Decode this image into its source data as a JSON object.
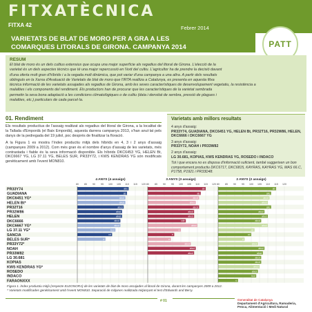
{
  "header": {
    "brand": "FITXATÈCNICA",
    "fitxa_number": "FITXA 42",
    "date": "Febrer 2014",
    "logo_text": "PATT",
    "colors": {
      "primary_green": "#6f9a2c",
      "light_green": "#dce9c3"
    }
  },
  "title": {
    "line1": "VARIETATS DE BLAT DE MORO PER A GRA A LES",
    "line2": "COMARQUES LITORALS DE GIRONA. CAMPANYA 2014"
  },
  "resum": {
    "heading": "RESUM",
    "lines": [
      "El blat de moro és un dels cultius extensius que ocupa una major superfície als regadius del litoral de Girona. L'elecció de la",
      "varietat és un dels aspectes tècnics que té una major repercussió en l'èxit del cultiu. L'agricultor ha de prendre la decisió davant",
      "d'una oferta molt gran d'híbrids i a la vegada molt dinàmica, que pot variar d'una campanya a una altra. A partir dels resultats",
      "obtinguts en la Xarxa d'Avaluació de Varietats de blat de moro que l'IRTA realitza a Catalunya, es presenta en aquesta fitxa",
      "tècnica informació de les varietats assajades als regadius de Girona, amb les seves característiques de desenvolupament vegetatiu, la resistència a",
      "malalties i els components del rendiment. Els productors han de procurar que les característiques de la varietat sembrada",
      "permetin la seva bona adaptació a les condicions climatològiques o de cultiu (data i densitat de sembra, pressió de plagues i",
      "malalties, etc.) particulars de cada parcel·la."
    ]
  },
  "rendiment": {
    "heading": "01. Rendiment",
    "paragraphs": [
      "Els resultats productius de l'assaig realitzat als regadius del litoral de Girona, a la localitat de la Tallada d'Empordà (el Baix Empordà), aquesta darrera campanya 2013, s'han anul·lat pels danys de la pedregada del 19 juliol, poc després de finalitzar la floració.",
      "A la Figura 1 es mostra l'índex productiu mitjà dels híbrids en 4, 3 i 2 anys d'assaig (campanyes 2009 a 2012). Com més gran és el nombre d'anys d'assaig de les varietats, més contrastada i fiable és la seva informació disponible. Els híbrids DKC6453 YG, HELEN Bt, DKC6667 YG, LG 37.11 YG, BELES SUR, PR33Y72, i KWS KENDRAS YG són modificats genèticament amb l'event MON810."
    ]
  },
  "best": {
    "heading": "Varietats amb millors resultats",
    "g4_label": "4 anys d'assaig:",
    "g4_list": "PR33Y74, GUADIANA, DKC6451 YG, HELEN Bt, PR32T16, PR32W86, HELEN, DKC6666 i DKC6667 YG",
    "g3_label": "3 anys d'assaig:",
    "g3_list": "PR33Y72, NOAH i PR33W82",
    "g2_label": "2 anys d'assaig:",
    "g2_list": "LG 30.681, KOPIAS, KWS KENDRAS YG, ROSEDO i INDACO",
    "note": "Tot i que encara no es disposa d'informació suficient, també suggerixen un bon comportament productiu DKC6717, DKC6815, KAYRAS, KAYRAS YG, MAS 66.C, P1758, P1921 i PR33D48."
  },
  "chart_data": {
    "type": "bar",
    "categories": [
      "PR33Y74",
      "GUADIANA",
      "DKC6451 YG*",
      "HELEN Bt*",
      "PR32T16",
      "PR32W86",
      "HELEN",
      "DKC6666",
      "DKC6667 YG*",
      "LG 37.11 YG*",
      "SANCIA",
      "BELES SUR*",
      "PR33Y72*",
      "NOAH",
      "PR33W82",
      "LG 30.681",
      "KOPIAS",
      "KWS KENDRAS YG*",
      "ROSEDO",
      "INDACO",
      "FARAONXXX"
    ],
    "panels": [
      {
        "title": "4 ANYS (4 assaigs)",
        "xlim": [
          80,
          120
        ],
        "ticks": [
          80,
          85,
          90,
          95,
          100,
          105,
          110,
          115,
          120
        ],
        "values": [
          111,
          110,
          109,
          109,
          108,
          107,
          107,
          106,
          106,
          103,
          101,
          97,
          null,
          null,
          null,
          null,
          null,
          null,
          null,
          null,
          null
        ],
        "labels": [
          "abc",
          "ab",
          "abcd",
          "abcd",
          "abcd",
          "abcd",
          "abcd",
          "abcd",
          "abcd",
          "bcd",
          "cd",
          "d",
          "",
          "",
          "",
          "",
          "",
          "",
          "",
          "",
          ""
        ]
      },
      {
        "title": "3 ANYS (3 assaigs)",
        "xlim": [
          80,
          120
        ],
        "ticks": [
          80,
          85,
          90,
          95,
          100,
          105,
          110,
          115,
          120
        ],
        "values": [
          115,
          112,
          111,
          109,
          111,
          108,
          108,
          103,
          110,
          100,
          96,
          94,
          106,
          109,
          108,
          null,
          null,
          null,
          null,
          null,
          null
        ],
        "labels": [
          "ab",
          "ab",
          "abcd",
          "abcd",
          "abcd",
          "abcd",
          "abcd",
          "cde",
          "abcd",
          "e",
          "e",
          "e",
          "abcd",
          "abcd",
          "abcd",
          "",
          "",
          "",
          "",
          "",
          ""
        ]
      },
      {
        "title": "2 ANYS (2 assaigs)",
        "xlim": [
          80,
          120
        ],
        "ticks": [
          80,
          85,
          90,
          95,
          100,
          105,
          110,
          115,
          120
        ],
        "values": [
          115,
          112,
          111,
          110,
          112,
          108,
          110,
          106,
          110,
          102,
          100,
          96,
          104,
          108,
          107,
          106,
          106,
          105,
          104,
          103,
          92
        ],
        "labels": [
          "ab",
          "abc",
          "abcd",
          "abcd",
          "abc",
          "abcd",
          "abcd",
          "abcd",
          "abcd",
          "cd",
          "cd",
          "d",
          "abcd",
          "abcd",
          "abcd",
          "abcd",
          "abcd",
          "abcd",
          "abcd",
          "bcd",
          "e"
        ]
      }
    ]
  },
  "caption": {
    "line1": "Figura 1. Índex productiu mitjà (respecte ELEONORA) de les varietats de blat de moro assajades al litoral de Girona, durant les campanyes 2009 a 2012.",
    "line2": "* Varietats modificades genèticament amb l'event MON810. Separació de mitjanes realitzada mitjançant el test d'Edwards and Berry."
  },
  "footer": {
    "page": "# 01",
    "gen1": "Generalitat de Catalunya",
    "gen2": "Departament d'Agricultura, Ramaderia,",
    "gen3": "Pesca, Alimentació i Medi Natural"
  }
}
